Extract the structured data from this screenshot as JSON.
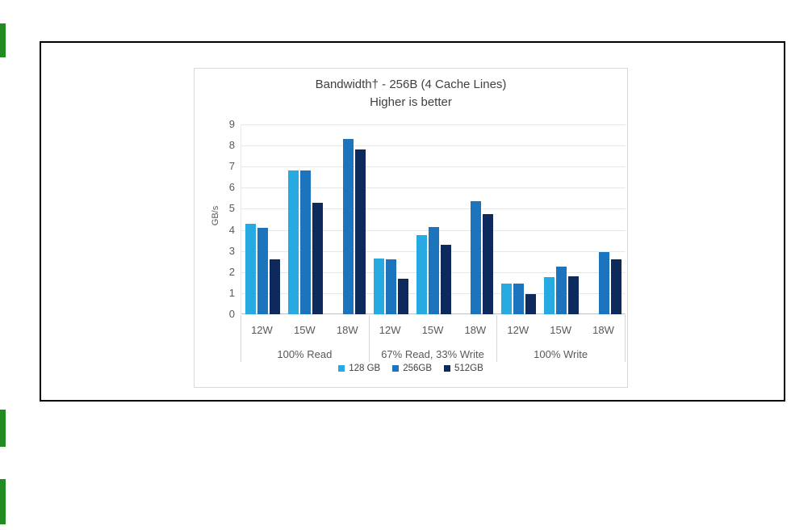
{
  "page": {
    "background": "#ffffff",
    "accent_bars": {
      "color": "#228B22",
      "count": 3
    },
    "content_box_border_color": "#000000"
  },
  "chart_data": {
    "type": "bar",
    "title": "Bandwidth† - 256B (4 Cache Lines)",
    "subtitle": "Higher is better",
    "ylabel": "GB/s",
    "ylim": [
      0,
      9
    ],
    "ytick_step": 1,
    "grid": true,
    "legend_position": "bottom",
    "series": [
      {
        "name": "128 GB",
        "color": "#27AAE1"
      },
      {
        "name": "256GB",
        "color": "#1C75BC"
      },
      {
        "name": "512GB",
        "color": "#0E2A5C"
      }
    ],
    "sections": [
      {
        "label": "100% Read",
        "clusters": [
          {
            "label": "12W",
            "values": [
              4.3,
              4.1,
              2.6
            ]
          },
          {
            "label": "15W",
            "values": [
              6.8,
              6.8,
              5.3
            ]
          },
          {
            "label": "18W",
            "values": [
              null,
              8.3,
              7.8
            ]
          }
        ]
      },
      {
        "label": "67% Read, 33% Write",
        "clusters": [
          {
            "label": "12W",
            "values": [
              2.65,
              2.6,
              1.7
            ]
          },
          {
            "label": "15W",
            "values": [
              3.75,
              4.15,
              3.3
            ]
          },
          {
            "label": "18W",
            "values": [
              null,
              5.35,
              4.75
            ]
          }
        ]
      },
      {
        "label": "100% Write",
        "clusters": [
          {
            "label": "12W",
            "values": [
              1.45,
              1.45,
              0.95
            ]
          },
          {
            "label": "15W",
            "values": [
              1.75,
              2.25,
              1.8
            ]
          },
          {
            "label": "18W",
            "values": [
              null,
              2.95,
              2.6
            ]
          }
        ]
      }
    ]
  }
}
